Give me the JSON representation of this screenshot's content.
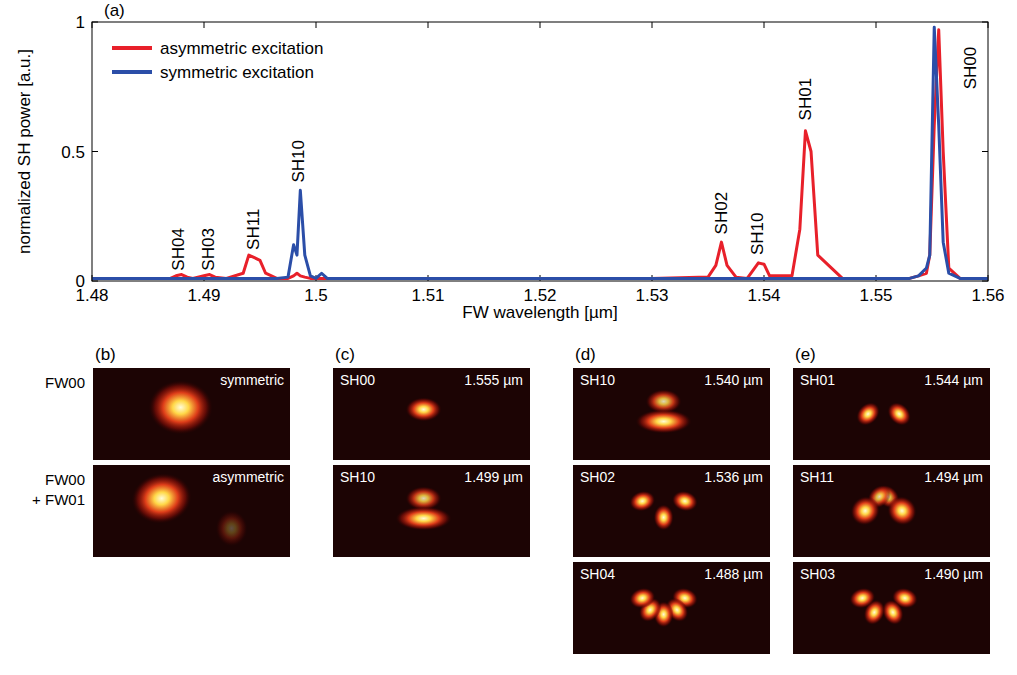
{
  "chart_data": {
    "type": "line",
    "label": "(a)",
    "x_label": "FW wavelength [µm]",
    "y_label": "normalized SH power [a.u.]",
    "x": [
      1.48,
      1.485,
      1.487,
      1.4875,
      1.488,
      1.4885,
      1.489,
      1.49,
      1.4905,
      1.491,
      1.492,
      1.4935,
      1.494,
      1.4945,
      1.495,
      1.4955,
      1.4965,
      1.4975,
      1.498,
      1.4983,
      1.4986,
      1.499,
      1.4995,
      1.5,
      1.5005,
      1.501,
      1.505,
      1.51,
      1.52,
      1.53,
      1.535,
      1.5357,
      1.5362,
      1.5367,
      1.5375,
      1.5385,
      1.539,
      1.5395,
      1.54,
      1.5405,
      1.5425,
      1.5432,
      1.5437,
      1.5442,
      1.5448,
      1.547,
      1.55,
      1.553,
      1.5538,
      1.5545,
      1.5548,
      1.5552,
      1.5556,
      1.556,
      1.5565,
      1.5575,
      1.56
    ],
    "series": [
      {
        "name": "asymmetric excitation",
        "color": "#e8202a",
        "values": [
          0.01,
          0.01,
          0.01,
          0.02,
          0.025,
          0.015,
          0.01,
          0.02,
          0.025,
          0.015,
          0.01,
          0.03,
          0.1,
          0.09,
          0.08,
          0.03,
          0.01,
          0.01,
          0.02,
          0.03,
          0.02,
          0.015,
          0.01,
          0.01,
          0.01,
          0.01,
          0.01,
          0.01,
          0.01,
          0.01,
          0.015,
          0.06,
          0.15,
          0.06,
          0.015,
          0.01,
          0.04,
          0.07,
          0.065,
          0.02,
          0.02,
          0.2,
          0.58,
          0.5,
          0.1,
          0.01,
          0.01,
          0.01,
          0.02,
          0.03,
          0.1,
          0.6,
          0.97,
          0.5,
          0.05,
          0.01,
          0.01
        ]
      },
      {
        "name": "symmetric excitation",
        "color": "#2b4ea8",
        "values": [
          0.01,
          0.01,
          0.01,
          0.01,
          0.01,
          0.01,
          0.01,
          0.01,
          0.01,
          0.01,
          0.01,
          0.01,
          0.01,
          0.01,
          0.01,
          0.01,
          0.01,
          0.015,
          0.14,
          0.1,
          0.35,
          0.1,
          0.02,
          0.01,
          0.03,
          0.01,
          0.01,
          0.01,
          0.01,
          0.01,
          0.01,
          0.01,
          0.01,
          0.01,
          0.01,
          0.01,
          0.01,
          0.01,
          0.01,
          0.01,
          0.01,
          0.01,
          0.01,
          0.01,
          0.01,
          0.01,
          0.01,
          0.01,
          0.02,
          0.05,
          0.1,
          0.98,
          0.6,
          0.15,
          0.03,
          0.01,
          0.01
        ]
      }
    ],
    "xlim": [
      1.48,
      1.56
    ],
    "xticks": [
      1.48,
      1.49,
      1.5,
      1.51,
      1.52,
      1.53,
      1.54,
      1.55,
      1.56
    ],
    "ylim": [
      0,
      1
    ],
    "yticks": [
      0,
      0.5,
      1
    ],
    "grid": false,
    "legend": "upper left",
    "annotations": [
      {
        "text": "SH04",
        "x": 1.4878,
        "y": 0.04
      },
      {
        "text": "SH03",
        "x": 1.4905,
        "y": 0.04
      },
      {
        "text": "SH11",
        "x": 1.4945,
        "y": 0.12
      },
      {
        "text": "SH10",
        "x": 1.4985,
        "y": 0.38
      },
      {
        "text": "SH02",
        "x": 1.5363,
        "y": 0.18
      },
      {
        "text": "SH10",
        "x": 1.5395,
        "y": 0.1
      },
      {
        "text": "SH01",
        "x": 1.5438,
        "y": 0.62
      },
      {
        "text": "SH00",
        "x": 1.5585,
        "y": 0.74
      }
    ]
  },
  "panels": [
    {
      "label": "(b)",
      "images": [
        {
          "row_label": [
            "FW00"
          ],
          "tag": "symmetric"
        },
        {
          "row_label": [
            "FW00",
            "+ FW01"
          ],
          "tag": "asymmetric"
        }
      ]
    },
    {
      "label": "(c)",
      "images": [
        {
          "mode": "SH00",
          "wavelength": "1.555 µm"
        },
        {
          "mode": "SH10",
          "wavelength": "1.499 µm"
        }
      ]
    },
    {
      "label": "(d)",
      "images": [
        {
          "mode": "SH10",
          "wavelength": "1.540 µm"
        },
        {
          "mode": "SH02",
          "wavelength": "1.536 µm"
        },
        {
          "mode": "SH04",
          "wavelength": "1.488 µm"
        }
      ]
    },
    {
      "label": "(e)",
      "images": [
        {
          "mode": "SH01",
          "wavelength": "1.544 µm"
        },
        {
          "mode": "SH11",
          "wavelength": "1.494 µm"
        },
        {
          "mode": "SH03",
          "wavelength": "1.490 µm"
        }
      ]
    }
  ]
}
